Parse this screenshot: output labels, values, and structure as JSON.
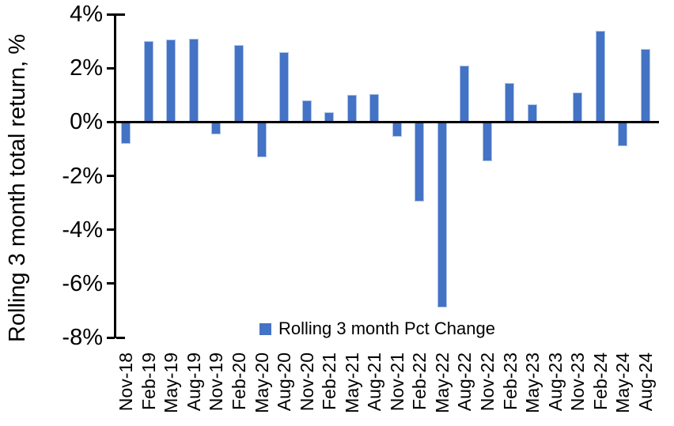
{
  "chart_data": {
    "type": "bar",
    "title": "",
    "xlabel": "",
    "ylabel": "Rolling 3 month total return, %",
    "categories": [
      "Nov-18",
      "Feb-19",
      "May-19",
      "Aug-19",
      "Nov-19",
      "Feb-20",
      "May-20",
      "Aug-20",
      "Nov-20",
      "Feb-21",
      "May-21",
      "Aug-21",
      "Nov-21",
      "Feb-22",
      "May-22",
      "Aug-22",
      "Nov-22",
      "Feb-23",
      "May-23",
      "Aug-23",
      "Nov-23",
      "Feb-24",
      "May-24",
      "Aug-24"
    ],
    "series": [
      {
        "name": "Rolling 3 month Pct Change",
        "values": [
          -0.8,
          3.0,
          3.05,
          3.1,
          -0.45,
          2.85,
          -1.3,
          2.6,
          0.8,
          0.35,
          1.0,
          1.05,
          -0.55,
          -2.95,
          -6.9,
          2.1,
          -1.45,
          1.45,
          0.65,
          0.0,
          1.1,
          3.4,
          -0.9,
          2.7
        ]
      }
    ],
    "ylim": [
      -8,
      4
    ],
    "ytick_values": [
      4,
      2,
      0,
      -2,
      -4,
      -6,
      -8
    ],
    "ytick_labels": [
      "4%",
      "2%",
      "0%",
      "-2%",
      "-4%",
      "-6%",
      "-8%"
    ],
    "grid": false,
    "legend_position": "bottom-center",
    "colors": {
      "bar_fill": "#4472C4",
      "bar_edge": "#a9c4e9",
      "axis": "#000000",
      "text": "#000000",
      "background": "#ffffff"
    }
  }
}
